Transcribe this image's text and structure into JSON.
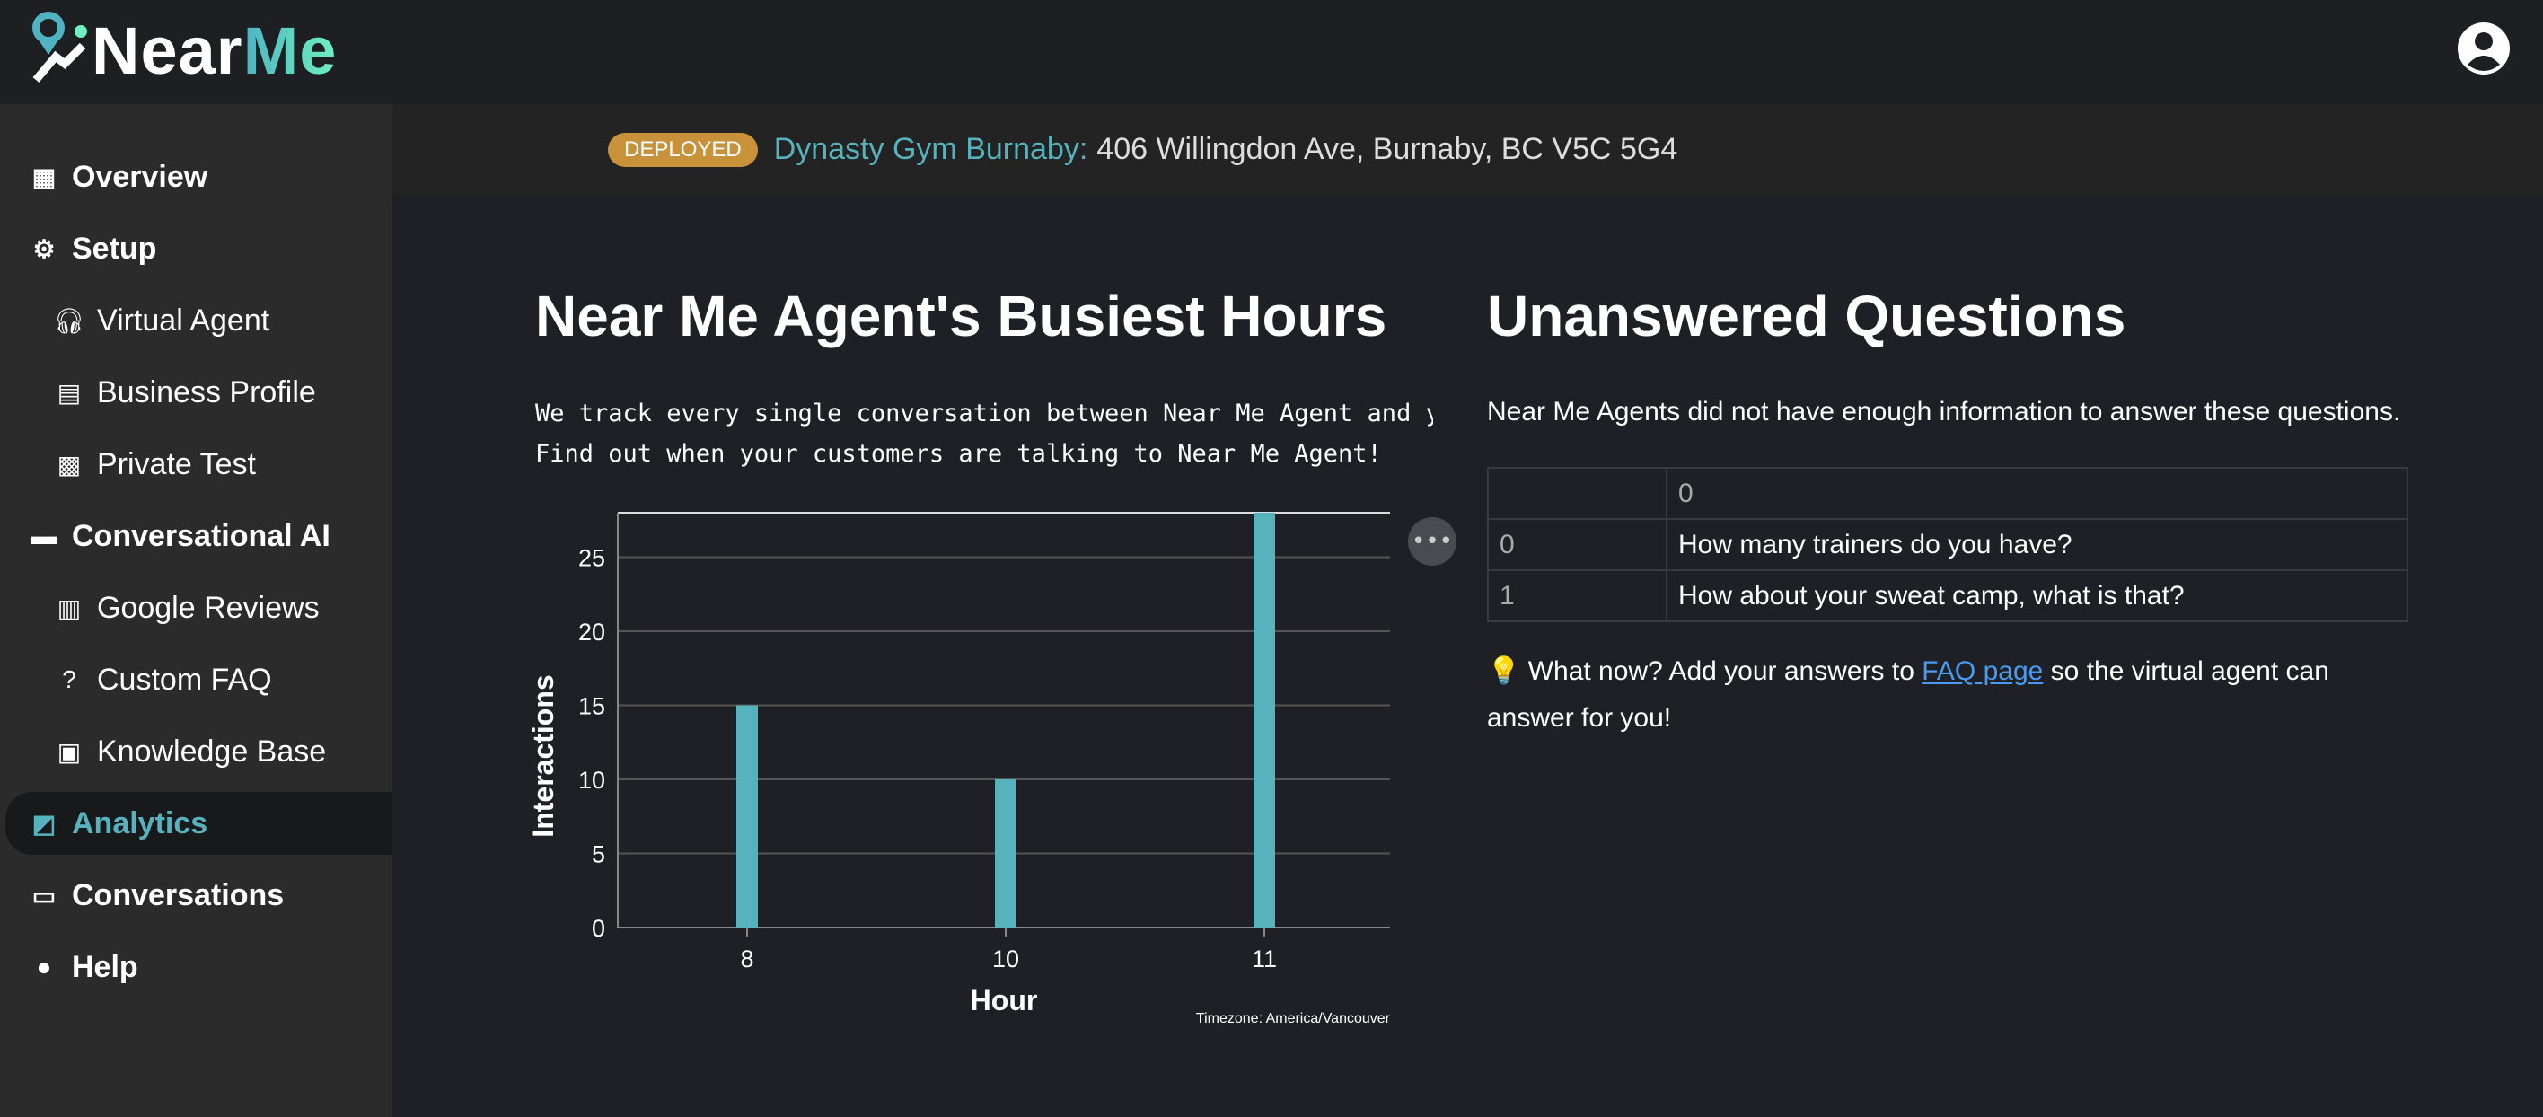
{
  "app": {
    "logo_text_a": "Near",
    "logo_text_b": "Me"
  },
  "sidebar": {
    "items": [
      {
        "label": "Overview",
        "icon": "dashboard-icon",
        "level": "top"
      },
      {
        "label": "Setup",
        "icon": "gear-icon",
        "level": "top"
      },
      {
        "label": "Virtual Agent",
        "icon": "headset-icon",
        "level": "sub"
      },
      {
        "label": "Business Profile",
        "icon": "contact-card-icon",
        "level": "sub"
      },
      {
        "label": "Private Test",
        "icon": "qr-code-icon",
        "level": "sub"
      },
      {
        "label": "Conversational AI",
        "icon": "message-icon",
        "level": "top"
      },
      {
        "label": "Google Reviews",
        "icon": "review-search-icon",
        "level": "sub"
      },
      {
        "label": "Custom FAQ",
        "icon": "question-box-icon",
        "level": "sub"
      },
      {
        "label": "Knowledge Base",
        "icon": "briefcase-icon",
        "level": "sub"
      },
      {
        "label": "Analytics",
        "icon": "chart-icon",
        "level": "top",
        "active": true
      },
      {
        "label": "Conversations",
        "icon": "chats-icon",
        "level": "top"
      },
      {
        "label": "Help",
        "icon": "lightbulb-icon",
        "level": "top"
      }
    ]
  },
  "banner": {
    "status": "DEPLOYED",
    "business_name": "Dynasty Gym Burnaby:",
    "address": "406 Willingdon Ave, Burnaby, BC V5C 5G4",
    "status_color": "#c8923a"
  },
  "busiest": {
    "title": "Near Me Agent's Busiest Hours",
    "line1": "We track every single conversation between Near Me Agent and y",
    "line2": "Find out when your customers are talking to Near Me Agent!"
  },
  "chart_data": {
    "type": "bar",
    "categories": [
      "8",
      "10",
      "11"
    ],
    "values": [
      15,
      10,
      28
    ],
    "xlabel": "Hour",
    "ylabel": "Interactions",
    "ylim": [
      0,
      28
    ],
    "yticks": [
      0,
      5,
      10,
      15,
      20,
      25
    ],
    "grid": true,
    "color": "#56b3bd",
    "footnote": "Timezone: America/Vancouver"
  },
  "unanswered": {
    "title": "Unanswered Questions",
    "subtitle": "Near Me Agents did not have enough information to answer these questions.",
    "header": [
      "",
      "0"
    ],
    "rows": [
      [
        "0",
        "How many trainers do you have?"
      ],
      [
        "1",
        "How about your sweat camp, what is that?"
      ]
    ],
    "note_pre": "💡 What now? Add your answers to ",
    "link": "FAQ page",
    "note_post": " so the virtual agent can answer for you!"
  }
}
